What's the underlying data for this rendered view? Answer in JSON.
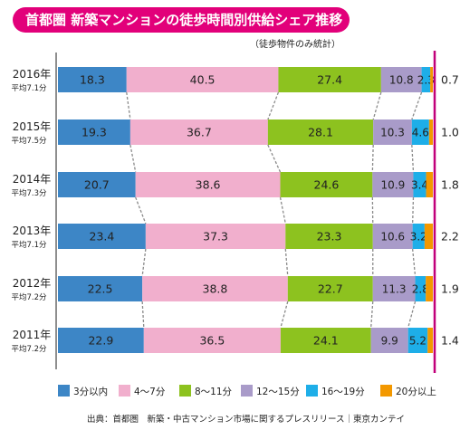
{
  "title": "首都圏 新築マンションの徒歩時間別供給シェア推移",
  "subtitle": "（徒歩物件のみ統計）",
  "source": "出典：首都圏　新築・中古マンション市場に関するプレスリリース｜東京カンテイ",
  "chart_data": {
    "type": "bar",
    "stacked": true,
    "orientation": "horizontal",
    "xlim": [
      0,
      100
    ],
    "rows": [
      {
        "year": "2016年",
        "avg": "平均7.1分",
        "values": [
          18.3,
          40.5,
          27.4,
          10.8,
          2.3,
          0.7
        ]
      },
      {
        "year": "2015年",
        "avg": "平均7.5分",
        "values": [
          19.3,
          36.7,
          28.1,
          10.3,
          4.6,
          1.0
        ]
      },
      {
        "year": "2014年",
        "avg": "平均7.3分",
        "values": [
          20.7,
          38.6,
          24.6,
          10.9,
          3.4,
          1.8
        ]
      },
      {
        "year": "2013年",
        "avg": "平均7.1分",
        "values": [
          23.4,
          37.3,
          23.3,
          10.6,
          3.2,
          2.2
        ]
      },
      {
        "year": "2012年",
        "avg": "平均7.2分",
        "values": [
          22.5,
          38.8,
          22.7,
          11.3,
          2.8,
          1.9
        ]
      },
      {
        "year": "2011年",
        "avg": "平均7.2分",
        "values": [
          22.9,
          36.5,
          24.1,
          9.9,
          5.2,
          1.4
        ]
      }
    ],
    "series": [
      {
        "name": "3分以内",
        "color": "#3d86c6"
      },
      {
        "name": "4〜7分",
        "color": "#f1afcd"
      },
      {
        "name": "8〜11分",
        "color": "#8dc21f"
      },
      {
        "name": "12〜15分",
        "color": "#a99bc9"
      },
      {
        "name": "16〜19分",
        "color": "#1eaee8"
      },
      {
        "name": "20分以上",
        "color": "#f39800"
      }
    ],
    "legend_position": "bottom",
    "axis_color": "#c1007a"
  }
}
